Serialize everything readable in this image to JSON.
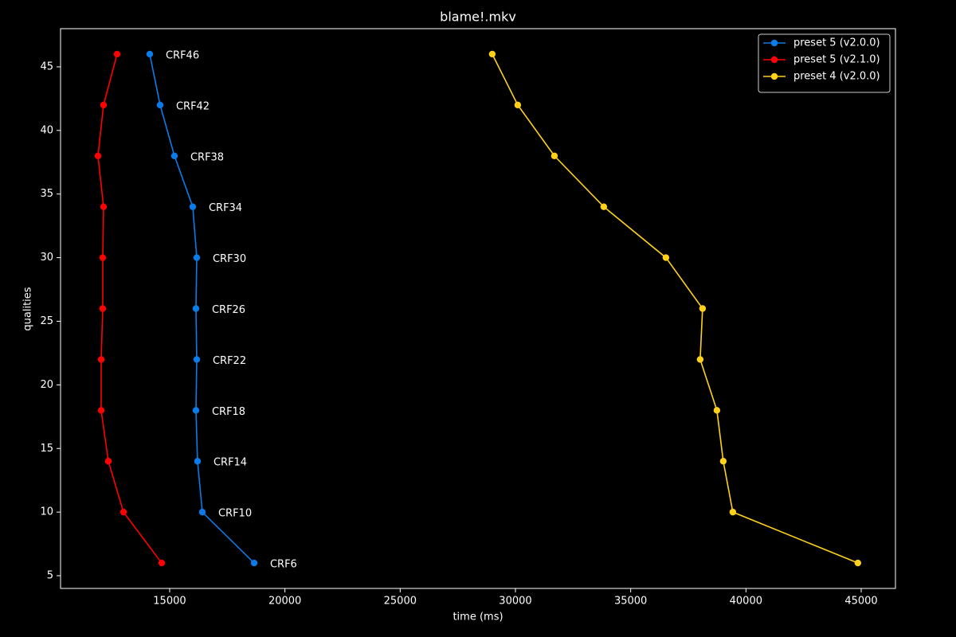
{
  "chart_data": {
    "type": "line",
    "title": "blame!.mkv",
    "x_label": "time (ms)",
    "y_label": "qualities",
    "xlim": [
      10266,
      46486
    ],
    "ylim": [
      4,
      48
    ],
    "xticks": [
      15000,
      20000,
      25000,
      30000,
      35000,
      40000,
      45000
    ],
    "yticks": [
      5,
      10,
      15,
      20,
      25,
      30,
      35,
      40,
      45
    ],
    "legend": "upper right",
    "marker": "circle",
    "series": [
      {
        "name": "preset 5 (v2.0.0)",
        "color": "#0a7be8",
        "x": [
          14136,
          14585,
          15207,
          16002,
          16175,
          16140,
          16175,
          16140,
          16209,
          16417,
          18663
        ],
        "values": [
          46,
          42,
          38,
          34,
          30,
          26,
          22,
          18,
          14,
          10,
          6
        ]
      },
      {
        "name": "preset 5 (v2.1.0)",
        "color": "#ff0000",
        "x": [
          12719,
          12132,
          11890,
          12132,
          12097,
          12097,
          12028,
          12028,
          12339,
          12996,
          14654
        ],
        "values": [
          46,
          42,
          38,
          34,
          30,
          26,
          22,
          18,
          14,
          10,
          6
        ]
      },
      {
        "name": "preset 4 (v2.0.0)",
        "color": "#ffd11a",
        "x": [
          28994,
          30100,
          31690,
          33833,
          36528,
          38118,
          38014,
          38740,
          39016,
          39431,
          44855
        ],
        "values": [
          46,
          42,
          38,
          34,
          30,
          26,
          22,
          18,
          14,
          10,
          6
        ]
      }
    ],
    "annotations": [
      "CRF46",
      "CRF42",
      "CRF38",
      "CRF34",
      "CRF30",
      "CRF26",
      "CRF22",
      "CRF18",
      "CRF14",
      "CRF10",
      "CRF6"
    ]
  }
}
